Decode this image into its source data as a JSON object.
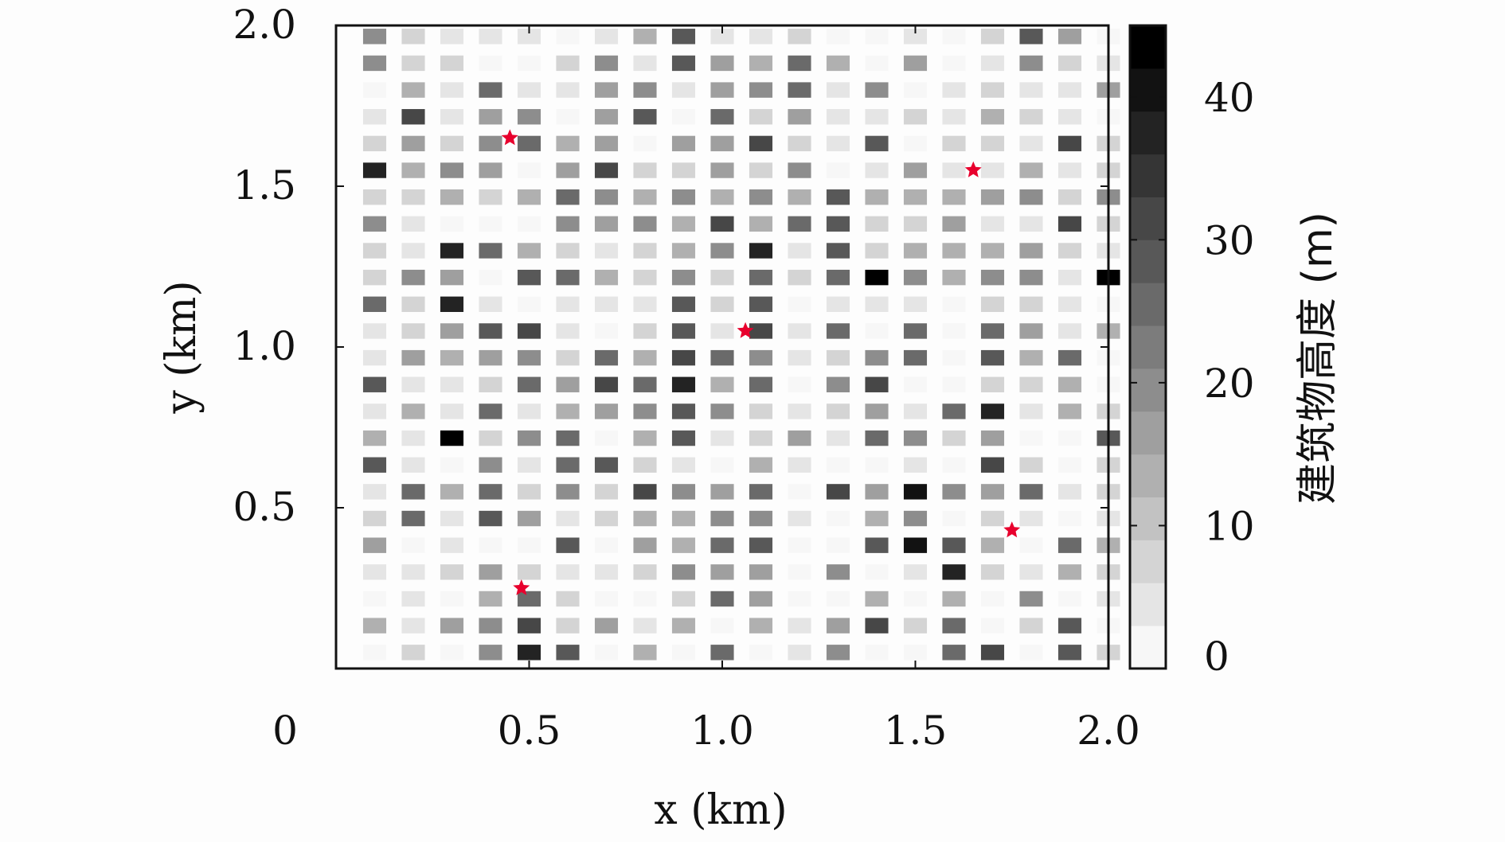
{
  "chart_data": {
    "type": "heatmap",
    "title": "",
    "xlabel": "x (km)",
    "ylabel": "y (km)",
    "xlim": [
      0,
      2.0
    ],
    "ylim": [
      0,
      2.0
    ],
    "xticks": [
      {
        "value": 0,
        "label": "0"
      },
      {
        "value": 0.5,
        "label": "0.5"
      },
      {
        "value": 1.0,
        "label": "1.0"
      },
      {
        "value": 1.5,
        "label": "1.5"
      },
      {
        "value": 2.0,
        "label": "2.0"
      }
    ],
    "yticks": [
      {
        "value": 0.5,
        "label": "0.5"
      },
      {
        "value": 1.0,
        "label": "1.0"
      },
      {
        "value": 1.5,
        "label": "1.5"
      },
      {
        "value": 2.0,
        "label": "2.0"
      }
    ],
    "grid": false,
    "colorbar": {
      "label": "建筑物高度 (m)",
      "range": [
        0,
        45
      ],
      "ticks": [
        {
          "value": 0,
          "label": "0"
        },
        {
          "value": 10,
          "label": "10"
        },
        {
          "value": 20,
          "label": "20"
        },
        {
          "value": 30,
          "label": "30"
        },
        {
          "value": 40,
          "label": "40"
        }
      ],
      "levels": 15,
      "colormap": "gray-reversed"
    },
    "block_grid": {
      "x_start": 0.1,
      "x_step": 0.1,
      "nx": 20,
      "y_start": 0.05,
      "y_step": 0.0833,
      "ny": 24,
      "block_size_km": 0.06,
      "note_heights_m": [
        [
          0,
          8,
          0,
          20,
          36,
          28,
          0,
          12,
          0,
          24,
          0,
          4,
          20,
          0,
          0,
          24,
          32,
          0,
          28,
          8
        ],
        [
          12,
          4,
          16,
          20,
          32,
          8,
          16,
          4,
          12,
          0,
          12,
          4,
          16,
          32,
          8,
          24,
          0,
          8,
          28,
          0
        ],
        [
          0,
          4,
          0,
          12,
          24,
          8,
          0,
          0,
          8,
          24,
          16,
          0,
          0,
          12,
          0,
          12,
          0,
          20,
          0,
          4
        ],
        [
          4,
          4,
          8,
          16,
          8,
          4,
          4,
          8,
          20,
          16,
          16,
          0,
          20,
          0,
          4,
          36,
          8,
          4,
          12,
          8
        ],
        [
          16,
          0,
          4,
          0,
          0,
          28,
          0,
          16,
          12,
          24,
          28,
          0,
          0,
          28,
          40,
          28,
          12,
          0,
          24,
          12
        ],
        [
          8,
          24,
          4,
          28,
          16,
          4,
          8,
          12,
          12,
          20,
          20,
          4,
          0,
          12,
          20,
          0,
          8,
          4,
          0,
          4
        ],
        [
          4,
          24,
          12,
          24,
          8,
          20,
          8,
          32,
          20,
          16,
          24,
          0,
          32,
          16,
          40,
          20,
          16,
          24,
          4,
          8
        ],
        [
          28,
          4,
          0,
          20,
          4,
          24,
          28,
          8,
          4,
          0,
          12,
          4,
          0,
          0,
          4,
          0,
          32,
          8,
          0,
          8
        ],
        [
          12,
          4,
          44,
          8,
          20,
          24,
          0,
          12,
          28,
          4,
          8,
          16,
          4,
          24,
          20,
          8,
          16,
          0,
          0,
          28
        ],
        [
          4,
          12,
          4,
          24,
          4,
          12,
          16,
          20,
          28,
          20,
          8,
          4,
          8,
          16,
          4,
          24,
          36,
          4,
          12,
          8
        ],
        [
          28,
          4,
          4,
          8,
          24,
          16,
          32,
          24,
          36,
          12,
          24,
          0,
          20,
          32,
          0,
          0,
          8,
          8,
          12,
          0
        ],
        [
          4,
          16,
          12,
          16,
          20,
          8,
          24,
          12,
          32,
          24,
          20,
          4,
          8,
          20,
          24,
          0,
          28,
          12,
          24,
          0
        ],
        [
          4,
          8,
          16,
          28,
          32,
          4,
          0,
          8,
          28,
          4,
          32,
          4,
          24,
          0,
          24,
          0,
          24,
          16,
          4,
          12
        ],
        [
          24,
          8,
          36,
          4,
          0,
          4,
          4,
          4,
          28,
          8,
          28,
          0,
          4,
          4,
          4,
          0,
          8,
          8,
          4,
          0
        ],
        [
          8,
          20,
          16,
          0,
          28,
          24,
          12,
          8,
          20,
          8,
          24,
          8,
          24,
          44,
          20,
          12,
          20,
          20,
          4,
          44
        ],
        [
          8,
          4,
          36,
          24,
          12,
          8,
          4,
          8,
          12,
          20,
          36,
          4,
          28,
          8,
          12,
          12,
          12,
          16,
          8,
          4
        ],
        [
          20,
          4,
          0,
          0,
          0,
          20,
          16,
          20,
          12,
          32,
          12,
          24,
          28,
          8,
          8,
          16,
          4,
          4,
          32,
          8
        ],
        [
          8,
          8,
          12,
          8,
          12,
          24,
          20,
          12,
          20,
          12,
          20,
          12,
          28,
          12,
          12,
          12,
          16,
          20,
          8,
          20
        ],
        [
          36,
          12,
          20,
          16,
          0,
          16,
          32,
          8,
          8,
          16,
          8,
          20,
          0,
          4,
          16,
          4,
          4,
          12,
          4,
          8
        ],
        [
          8,
          16,
          8,
          20,
          24,
          12,
          16,
          0,
          16,
          16,
          32,
          8,
          4,
          28,
          0,
          8,
          8,
          4,
          32,
          8
        ],
        [
          4,
          32,
          4,
          16,
          20,
          0,
          16,
          28,
          0,
          24,
          8,
          16,
          4,
          4,
          8,
          4,
          12,
          8,
          4,
          0
        ],
        [
          0,
          12,
          4,
          24,
          4,
          4,
          16,
          20,
          4,
          16,
          20,
          24,
          4,
          20,
          0,
          4,
          8,
          4,
          4,
          16
        ],
        [
          20,
          8,
          8,
          0,
          0,
          8,
          20,
          4,
          28,
          16,
          12,
          24,
          12,
          0,
          16,
          0,
          4,
          20,
          8,
          4
        ],
        [
          20,
          8,
          4,
          4,
          4,
          0,
          4,
          12,
          28,
          4,
          4,
          8,
          0,
          0,
          4,
          0,
          8,
          28,
          16,
          0
        ]
      ]
    },
    "markers": {
      "symbol": "star",
      "color": "#e8002d",
      "points": [
        {
          "x": 0.45,
          "y": 1.65
        },
        {
          "x": 1.65,
          "y": 1.55
        },
        {
          "x": 1.06,
          "y": 1.05
        },
        {
          "x": 1.75,
          "y": 0.43
        },
        {
          "x": 0.48,
          "y": 0.25
        }
      ]
    }
  }
}
